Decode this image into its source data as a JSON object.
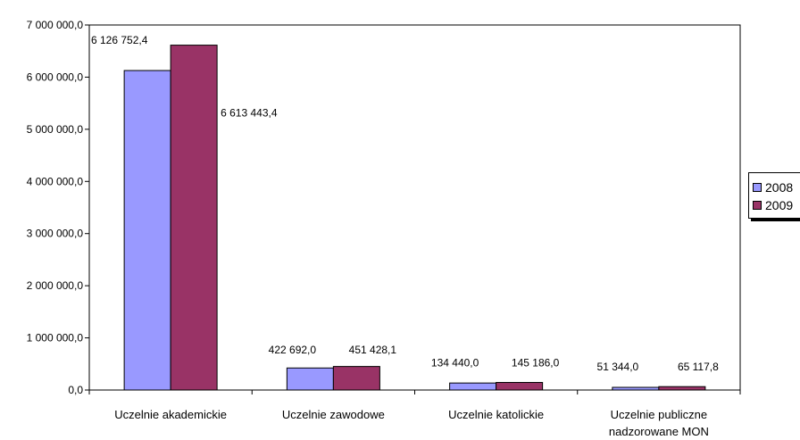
{
  "chart_data": {
    "type": "bar",
    "title": "",
    "xlabel": "",
    "ylabel": "",
    "categories": [
      "Uczelnie akademickie",
      "Uczelnie zawodowe",
      "Uczelnie katolickie",
      "Uczelnie publiczne nadzorowane MON"
    ],
    "category_lines": [
      [
        "Uczelnie akademickie"
      ],
      [
        "Uczelnie zawodowe"
      ],
      [
        "Uczelnie katolickie"
      ],
      [
        "Uczelnie publiczne",
        "nadzorowane MON"
      ]
    ],
    "series": [
      {
        "name": "2008",
        "color": "#9999ff",
        "values": [
          6126752.4,
          422692.0,
          134440.0,
          51344.0
        ],
        "labels": [
          "6 126 752,4",
          "422 692,0",
          "134 440,0",
          "51 344,0"
        ]
      },
      {
        "name": "2009",
        "color": "#993366",
        "values": [
          6613443.4,
          451428.1,
          145186.0,
          65117.8
        ],
        "labels": [
          "6 613 443,4",
          "451 428,1",
          "145 186,0",
          "65 117,8"
        ]
      }
    ],
    "ylim": [
      0,
      7000000
    ],
    "yticks": [
      0,
      1000000,
      2000000,
      3000000,
      4000000,
      5000000,
      6000000,
      7000000
    ],
    "ytick_labels": [
      "0,0",
      "1 000 000,0",
      "2 000 000,0",
      "3 000 000,0",
      "4 000 000,0",
      "5 000 000,0",
      "6 000 000,0",
      "7 000 000,0"
    ],
    "grid": false,
    "legend_position": "right"
  }
}
